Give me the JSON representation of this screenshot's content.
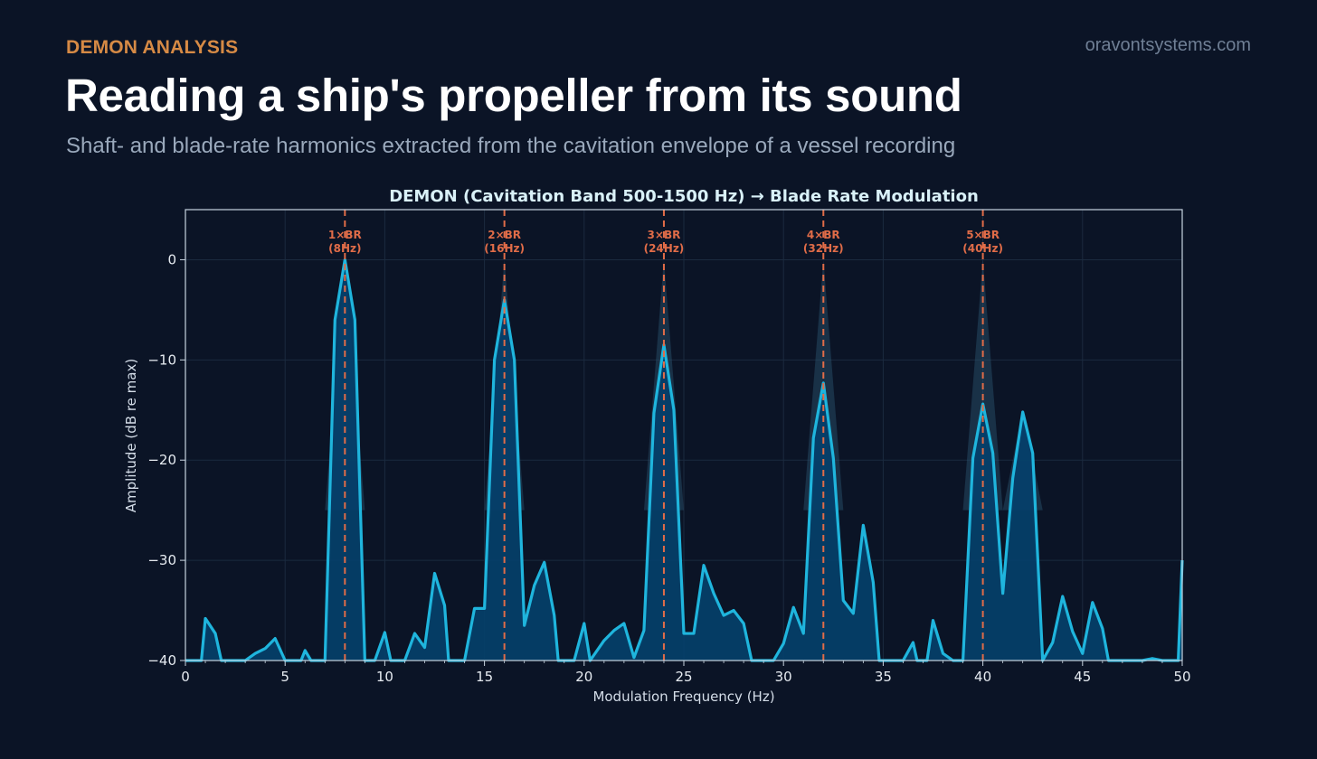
{
  "header": {
    "eyebrow": "DEMON ANALYSIS",
    "brand": "oravontsystems.com",
    "title": "Reading a ship's propeller from its sound",
    "subtitle": "Shaft- and blade-rate harmonics extracted from the cavitation envelope of a vessel recording"
  },
  "colors": {
    "background": "#0b1426",
    "spectrum_line": "#1fb5dd",
    "spectrum_fill": "#04406b",
    "harmonic_marker": "#e06c48",
    "accent": "#d68a45"
  },
  "chart_data": {
    "type": "area",
    "title": "DEMON (Cavitation Band 500-1500 Hz) → Blade Rate Modulation",
    "xlabel": "Modulation Frequency (Hz)",
    "ylabel": "Amplitude (dB re max)",
    "xlim": [
      0,
      50
    ],
    "ylim": [
      -40,
      5
    ],
    "xticks": [
      0,
      5,
      10,
      15,
      20,
      25,
      30,
      35,
      40,
      45,
      50
    ],
    "yticks": [
      0,
      -10,
      -20,
      -30,
      -40
    ],
    "ytick_labels": [
      "0",
      "−10",
      "−20",
      "−30",
      "−40"
    ],
    "grid": true,
    "series": [
      {
        "x": [
          0,
          0.5,
          0.8,
          1.0,
          1.5,
          1.8,
          2.5,
          3.0,
          3.5,
          4.0,
          4.5,
          5.0,
          5.5,
          5.8,
          6.0,
          6.3,
          7.0,
          7.5,
          8.0,
          8.5,
          9.0,
          9.5,
          10.0,
          10.3,
          11.0,
          11.5,
          12.0,
          12.5,
          13.0,
          13.2,
          14.0,
          14.5,
          15.0,
          15.5,
          16.0,
          16.5,
          17.0,
          17.5,
          18.0,
          18.5,
          18.7,
          19.5,
          20.0,
          20.3,
          21.0,
          21.5,
          22.0,
          22.5,
          23.0,
          23.5,
          24.0,
          24.5,
          25.0,
          25.5,
          26.0,
          26.5,
          27.0,
          27.5,
          28.0,
          28.4,
          29.0,
          29.5,
          30.0,
          30.5,
          31.0,
          31.5,
          32.0,
          32.5,
          33.0,
          33.5,
          34.0,
          34.5,
          34.8,
          35.5,
          36.0,
          36.5,
          36.7,
          37.2,
          37.5,
          38.0,
          38.5,
          39.0,
          39.5,
          40.0,
          40.5,
          41.0,
          41.5,
          42.0,
          42.5,
          43.0,
          43.5,
          44.0,
          44.5,
          45.0,
          45.5,
          46.0,
          46.3,
          47.0,
          48.0,
          48.5,
          49.0,
          49.8,
          50.0
        ],
        "y": [
          -40,
          -40,
          -40,
          -35.8,
          -37.3,
          -40,
          -40,
          -40,
          -39.3,
          -38.8,
          -37.8,
          -40,
          -40,
          -40,
          -39.0,
          -40,
          -40,
          -6.0,
          0,
          -6.0,
          -40,
          -40,
          -37.2,
          -40,
          -40,
          -37.3,
          -38.7,
          -31.3,
          -34.5,
          -40,
          -40,
          -34.8,
          -34.8,
          -10.0,
          -4.0,
          -10.0,
          -36.5,
          -32.5,
          -30.2,
          -35.5,
          -40,
          -40,
          -36.3,
          -40,
          -38.0,
          -37.0,
          -36.3,
          -39.7,
          -37.0,
          -15.3,
          -8.5,
          -15.0,
          -37.3,
          -37.3,
          -30.5,
          -33.3,
          -35.5,
          -35.0,
          -36.3,
          -40,
          -40,
          -40,
          -38.3,
          -34.7,
          -37.3,
          -17.8,
          -12.3,
          -19.8,
          -34.0,
          -35.3,
          -26.5,
          -32.2,
          -40,
          -40,
          -40,
          -38.2,
          -40,
          -40,
          -36.0,
          -39.3,
          -40,
          -40,
          -19.8,
          -14.4,
          -19.3,
          -33.3,
          -21.8,
          -15.2,
          -19.3,
          -40,
          -38.2,
          -33.6,
          -37.1,
          -39.3,
          -34.2,
          -36.8,
          -40,
          -40,
          -40,
          -39.8,
          -40,
          -40,
          -30.0
        ]
      }
    ],
    "harmonics": [
      {
        "freq": 8,
        "line1": "1×BR",
        "line2": "(8Hz)"
      },
      {
        "freq": 16,
        "line1": "2×BR",
        "line2": "(16Hz)"
      },
      {
        "freq": 24,
        "line1": "3×BR",
        "line2": "(24Hz)"
      },
      {
        "freq": 32,
        "line1": "4×BR",
        "line2": "(32Hz)"
      },
      {
        "freq": 40,
        "line1": "5×BR",
        "line2": "(40Hz)"
      }
    ]
  }
}
